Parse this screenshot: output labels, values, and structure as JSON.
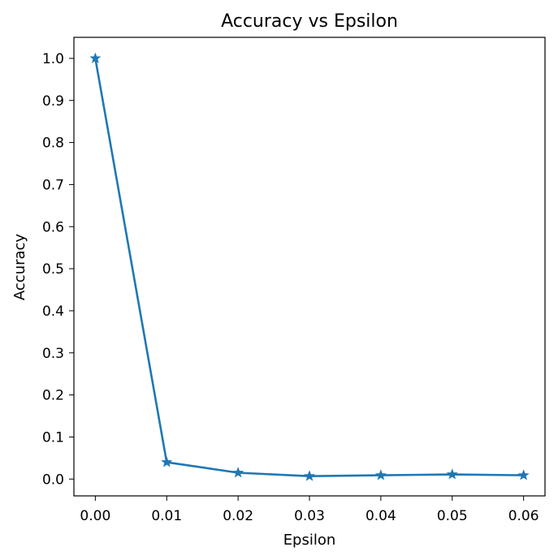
{
  "chart_data": {
    "type": "line",
    "title": "Accuracy vs Epsilon",
    "xlabel": "Epsilon",
    "ylabel": "Accuracy",
    "x": [
      0.0,
      0.01,
      0.02,
      0.03,
      0.04,
      0.05,
      0.06
    ],
    "series": [
      {
        "values": [
          1.0,
          0.04,
          0.015,
          0.007,
          0.009,
          0.011,
          0.009
        ],
        "color": "#1f77b4",
        "marker": "star"
      }
    ],
    "xticks": [
      0.0,
      0.01,
      0.02,
      0.03,
      0.04,
      0.05,
      0.06
    ],
    "xtick_labels": [
      "0.00",
      "0.01",
      "0.02",
      "0.03",
      "0.04",
      "0.05",
      "0.06"
    ],
    "yticks": [
      0.0,
      0.1,
      0.2,
      0.3,
      0.4,
      0.5,
      0.6,
      0.7,
      0.8,
      0.9,
      1.0
    ],
    "ytick_labels": [
      "0.0",
      "0.1",
      "0.2",
      "0.3",
      "0.4",
      "0.5",
      "0.6",
      "0.7",
      "0.8",
      "0.9",
      "1.0"
    ],
    "xlim": [
      -0.003,
      0.063
    ],
    "ylim": [
      -0.04,
      1.05
    ],
    "grid": false,
    "legend": "none"
  }
}
